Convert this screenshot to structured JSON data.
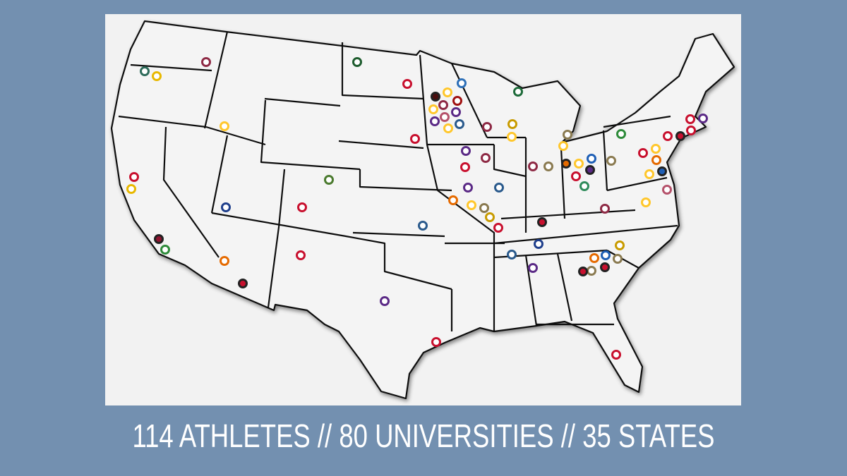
{
  "caption": "114 ATHLETES // 80 UNIVERSITIES // 35 STATES"
}
